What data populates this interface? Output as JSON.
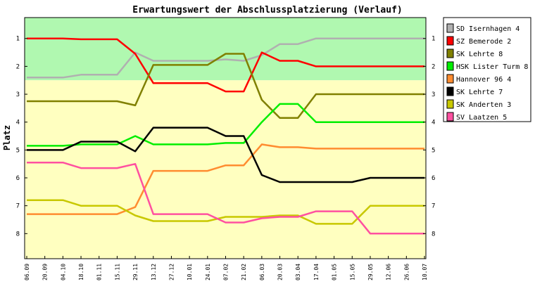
{
  "chart_data": {
    "type": "line",
    "title": "Erwartungswert der Abschlussplatzierung (Verlauf)",
    "ylabel": "Platz",
    "xlabel": "",
    "ylim": [
      0.25,
      8.9
    ],
    "y_inverted": true,
    "yticks": [
      1,
      2,
      3,
      4,
      5,
      6,
      7,
      8
    ],
    "grid": false,
    "legend_position": "right",
    "bands": [
      {
        "from": 0.25,
        "to": 2.5,
        "color": "#b0f8b0"
      },
      {
        "from": 2.5,
        "to": 8.9,
        "color": "#ffffc0"
      }
    ],
    "x": [
      "06.09",
      "20.09",
      "04.10",
      "18.10",
      "01.11",
      "15.11",
      "29.11",
      "13.12",
      "27.12",
      "10.01",
      "24.01",
      "07.02",
      "21.02",
      "06.03",
      "20.03",
      "03.04",
      "17.04",
      "01.05",
      "15.05",
      "29.05",
      "12.06",
      "26.06",
      "10.07"
    ],
    "series": [
      {
        "name": "SD Isernhagen 4",
        "color": "#b0b0b0",
        "values": [
          2.4,
          2.4,
          2.4,
          2.3,
          2.3,
          2.3,
          1.5,
          1.8,
          1.8,
          1.8,
          1.8,
          1.75,
          1.8,
          1.6,
          1.2,
          1.2,
          1.0,
          1.0,
          1.0,
          1.0,
          1.0,
          1.0,
          1.0
        ]
      },
      {
        "name": "SZ Bemerode 2",
        "color": "#ff0000",
        "values": [
          1.0,
          1.0,
          1.0,
          1.03,
          1.03,
          1.03,
          1.55,
          2.6,
          2.6,
          2.6,
          2.6,
          2.9,
          2.9,
          1.5,
          1.8,
          1.8,
          2.0,
          2.0,
          2.0,
          2.0,
          2.0,
          2.0,
          2.0
        ]
      },
      {
        "name": "SK Lehrte 8",
        "color": "#808000",
        "values": [
          3.25,
          3.25,
          3.25,
          3.25,
          3.25,
          3.25,
          3.4,
          1.95,
          1.95,
          1.95,
          1.95,
          1.55,
          1.55,
          3.2,
          3.85,
          3.85,
          3.0,
          3.0,
          3.0,
          3.0,
          3.0,
          3.0,
          3.0
        ]
      },
      {
        "name": "HSK Lister Turm 8",
        "color": "#00ee00",
        "values": [
          4.85,
          4.85,
          4.85,
          4.8,
          4.8,
          4.8,
          4.5,
          4.8,
          4.8,
          4.8,
          4.8,
          4.75,
          4.75,
          4.0,
          3.35,
          3.35,
          4.0,
          4.0,
          4.0,
          4.0,
          4.0,
          4.0,
          4.0
        ]
      },
      {
        "name": "Hannover 96 4",
        "color": "#ff8c30",
        "values": [
          7.3,
          7.3,
          7.3,
          7.3,
          7.3,
          7.3,
          7.05,
          5.75,
          5.75,
          5.75,
          5.75,
          5.55,
          5.55,
          4.8,
          4.9,
          4.9,
          4.95,
          4.95,
          4.95,
          4.95,
          4.95,
          4.95,
          4.95
        ]
      },
      {
        "name": "SK Lehrte 7",
        "color": "#000000",
        "values": [
          5.0,
          5.0,
          5.0,
          4.7,
          4.7,
          4.7,
          5.05,
          4.2,
          4.2,
          4.2,
          4.2,
          4.5,
          4.5,
          5.9,
          6.15,
          6.15,
          6.15,
          6.15,
          6.15,
          6.0,
          6.0,
          6.0,
          6.0
        ]
      },
      {
        "name": "SK Anderten 3",
        "color": "#c8c800",
        "values": [
          6.8,
          6.8,
          6.8,
          7.0,
          7.0,
          7.0,
          7.35,
          7.55,
          7.55,
          7.55,
          7.55,
          7.4,
          7.4,
          7.4,
          7.35,
          7.35,
          7.65,
          7.65,
          7.65,
          7.0,
          7.0,
          7.0,
          7.0
        ]
      },
      {
        "name": "SV Laatzen 5",
        "color": "#ff50a0",
        "values": [
          5.45,
          5.45,
          5.45,
          5.65,
          5.65,
          5.65,
          5.5,
          7.3,
          7.3,
          7.3,
          7.3,
          7.6,
          7.6,
          7.45,
          7.4,
          7.4,
          7.2,
          7.2,
          7.2,
          8.0,
          8.0,
          8.0,
          8.0
        ]
      }
    ]
  }
}
